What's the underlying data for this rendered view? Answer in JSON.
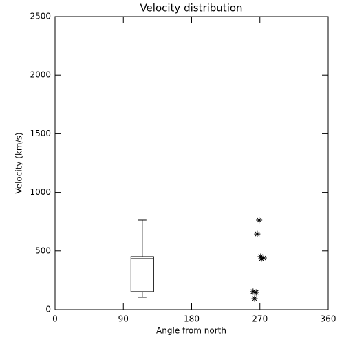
{
  "chart_data": {
    "type": "box",
    "title": "Velocity distribution",
    "x_label": "Angle from north",
    "y_label": "Velocity (km/s)",
    "xlim": [
      0,
      360
    ],
    "xticks": [
      0,
      90,
      180,
      270,
      360
    ],
    "ylim": [
      0,
      2500
    ],
    "yticks": [
      0,
      500,
      1000,
      1500,
      2000,
      2500
    ],
    "boxes": [
      {
        "x": 115,
        "min": 106,
        "q1": 153,
        "median": 434,
        "q3": 452,
        "max": 763
      }
    ],
    "points": {
      "x": [
        269,
        266.5,
        271,
        275,
        272,
        261,
        265,
        263
      ],
      "y": [
        763,
        645,
        452,
        440,
        434,
        153,
        147,
        94
      ]
    },
    "color": "#000000"
  }
}
